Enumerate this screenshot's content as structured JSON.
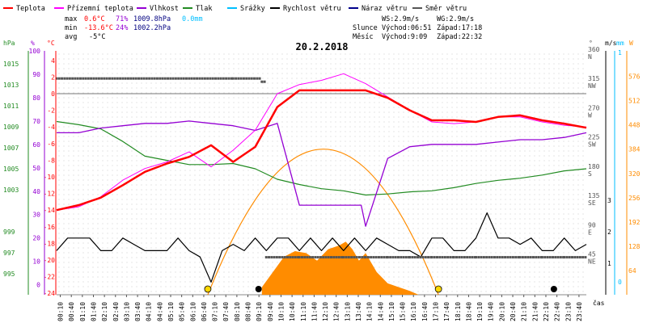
{
  "date": "20.2.2018",
  "legend": [
    {
      "label": "Teplota",
      "color": "#ff0000"
    },
    {
      "label": "Přízemní teplota",
      "color": "#ff00ff"
    },
    {
      "label": "Vlhkost",
      "color": "#9400d3"
    },
    {
      "label": "Tlak",
      "color": "#228b22"
    },
    {
      "label": "Srážky",
      "color": "#00bfff"
    },
    {
      "label": "Rychlost větru",
      "color": "#000000"
    },
    {
      "label": "Náraz větru",
      "color": "#00008b"
    },
    {
      "label": "Směr větru",
      "color": "#555555"
    }
  ],
  "stats": {
    "max": {
      "label": "max",
      "temp": "0.6°C",
      "hum": "71%",
      "press": "1009.8hPa",
      "rain": "0.0mm"
    },
    "min": {
      "label": "min",
      "temp": "-13.6°C",
      "hum": "24%",
      "press": "1002.2hPa"
    },
    "avg": {
      "label": "avg",
      "temp": "-5°C"
    }
  },
  "wind": {
    "ws": "WS:2.9m/s",
    "wg": "WG:2.9m/s"
  },
  "sun": {
    "label": "Slunce",
    "rise": "Východ:06:51",
    "set": "Západ:17:18"
  },
  "moon": {
    "label": "Měsíc",
    "rise": "Východ:9:09",
    "set": "Západ:22:32"
  },
  "axes": {
    "hpa": {
      "unit": "hPa",
      "ticks": [
        "1015",
        "1013",
        "1011",
        "1009",
        "1007",
        "1005",
        "1003",
        "999",
        "997",
        "995"
      ]
    },
    "pct": {
      "unit": "%",
      "ticks": [
        "100",
        "90",
        "80",
        "70",
        "60",
        "50",
        "40",
        "30",
        "20",
        "10",
        "0"
      ]
    },
    "temp": {
      "unit": "°C",
      "ticks": [
        "4",
        "2",
        "0",
        "-2",
        "-4",
        "-6",
        "-8",
        "-10",
        "-12",
        "-14",
        "-16",
        "-18",
        "-20",
        "-22",
        "-24"
      ]
    },
    "dir": {
      "unit": "°",
      "ticks": [
        {
          "deg": "360",
          "name": "N"
        },
        {
          "deg": "315",
          "name": "NW"
        },
        {
          "deg": "270",
          "name": "W"
        },
        {
          "deg": "225",
          "name": "SW"
        },
        {
          "deg": "180",
          "name": "S"
        },
        {
          "deg": "135",
          "name": "SE"
        },
        {
          "deg": "90",
          "name": "E"
        },
        {
          "deg": "45",
          "name": "NE"
        }
      ]
    },
    "ms": {
      "unit": "m/s",
      "ticks": [
        "3",
        "2",
        "1"
      ]
    },
    "mm": {
      "unit": "mm",
      "ticks": [
        "1",
        "0"
      ]
    },
    "wm2": {
      "unit": "W",
      "ticks": [
        "576",
        "512",
        "448",
        "384",
        "320",
        "256",
        "192",
        "128",
        "64"
      ]
    },
    "x": {
      "unit": "čas",
      "ticks": [
        "00:10",
        "00:40",
        "01:10",
        "01:40",
        "02:10",
        "02:40",
        "03:10",
        "03:40",
        "04:10",
        "04:40",
        "05:10",
        "05:40",
        "06:10",
        "06:40",
        "07:10",
        "07:40",
        "08:10",
        "08:40",
        "09:10",
        "09:40",
        "10:10",
        "10:40",
        "11:10",
        "11:40",
        "12:10",
        "12:40",
        "13:10",
        "13:40",
        "14:10",
        "14:40",
        "15:10",
        "15:40",
        "16:10",
        "16:40",
        "17:10",
        "17:40",
        "18:10",
        "18:40",
        "19:10",
        "19:40",
        "20:10",
        "20:40",
        "21:10",
        "21:40",
        "22:10",
        "22:40",
        "23:10",
        "23:40"
      ]
    }
  },
  "chart_data": {
    "type": "line",
    "x_unit": "hour of day",
    "series": [
      {
        "name": "Teplota",
        "unit": "°C",
        "color": "#ff0000",
        "x": [
          0,
          1,
          2,
          3,
          4,
          5,
          6,
          7,
          8,
          9,
          10,
          11,
          12,
          13,
          14,
          15,
          16,
          17,
          18,
          19,
          20,
          21,
          22,
          23,
          24
        ],
        "y": [
          -14,
          -13.4,
          -12.5,
          -11,
          -9.4,
          -8.4,
          -7.6,
          -6.2,
          -8.2,
          -6.4,
          -1.6,
          0.4,
          0.4,
          0.4,
          0.4,
          -0.5,
          -2,
          -3.2,
          -3.2,
          -3.4,
          -2.8,
          -2.6,
          -3.2,
          -3.6,
          -4.1
        ]
      },
      {
        "name": "Přízemní teplota",
        "unit": "°C",
        "color": "#ff00ff",
        "x": [
          0,
          1,
          2,
          3,
          4,
          5,
          6,
          7,
          8,
          9,
          10,
          11,
          12,
          13,
          14,
          15,
          16,
          17,
          18,
          19,
          20,
          21,
          22,
          23,
          24
        ],
        "y": [
          -14,
          -13.6,
          -12.4,
          -10.4,
          -9,
          -8.2,
          -7,
          -8.8,
          -6.8,
          -4.4,
          0,
          1.1,
          1.6,
          2.4,
          1.2,
          -0.4,
          -2,
          -3.4,
          -3.6,
          -3.4,
          -2.8,
          -2.8,
          -3.4,
          -3.8,
          -4
        ]
      },
      {
        "name": "Vlhkost",
        "unit": "%",
        "color": "#9400d3",
        "x": [
          0,
          1,
          2,
          3,
          4,
          5,
          6,
          7,
          8,
          9,
          10,
          11,
          12,
          13,
          13.8,
          14,
          15,
          16,
          17,
          18,
          19,
          20,
          21,
          22,
          23,
          24
        ],
        "y": [
          65,
          65,
          67,
          68,
          69,
          69,
          70,
          69,
          68,
          66,
          69,
          34,
          34,
          34,
          34,
          25,
          54,
          59,
          60,
          60,
          60,
          61,
          62,
          62,
          63,
          65
        ]
      },
      {
        "name": "Tlak",
        "unit": "hPa",
        "color": "#228b22",
        "x": [
          0,
          1,
          2,
          3,
          4,
          5,
          6,
          7,
          8,
          9,
          10,
          11,
          12,
          13,
          14,
          15,
          16,
          17,
          18,
          19,
          20,
          21,
          22,
          23,
          24
        ],
        "y": [
          1009.5,
          1009.2,
          1008.8,
          1007.6,
          1006.2,
          1005.8,
          1005.4,
          1005.4,
          1005.5,
          1005.0,
          1004.0,
          1003.5,
          1003.1,
          1002.9,
          1002.5,
          1002.6,
          1002.8,
          1002.9,
          1003.2,
          1003.6,
          1003.9,
          1004.1,
          1004.4,
          1004.8,
          1005.0
        ]
      },
      {
        "name": "Rychlost větru",
        "unit": "m/s",
        "color": "#000000",
        "x": [
          0,
          0.5,
          1,
          1.5,
          2,
          2.5,
          3,
          3.5,
          4,
          4.5,
          5,
          5.5,
          6,
          6.5,
          7,
          7.5,
          8,
          8.5,
          9,
          9.5,
          10,
          10.5,
          11,
          11.5,
          12,
          12.5,
          13,
          13.5,
          14,
          14.5,
          15,
          15.5,
          16,
          16.5,
          17,
          17.5,
          18,
          18.5,
          19,
          19.5,
          20,
          20.5,
          21,
          21.5,
          22,
          22.5,
          23,
          23.5,
          24
        ],
        "y": [
          1.4,
          1.8,
          1.8,
          1.8,
          1.4,
          1.4,
          1.8,
          1.6,
          1.4,
          1.4,
          1.4,
          1.8,
          1.4,
          1.2,
          0.4,
          1.4,
          1.6,
          1.4,
          1.8,
          1.4,
          1.8,
          1.8,
          1.4,
          1.8,
          1.4,
          1.8,
          1.4,
          1.8,
          1.4,
          1.8,
          1.6,
          1.4,
          1.4,
          1.2,
          1.8,
          1.8,
          1.4,
          1.4,
          1.8,
          2.6,
          1.8,
          1.8,
          1.6,
          1.8,
          1.4,
          1.4,
          1.8,
          1.4,
          1.6
        ]
      },
      {
        "name": "Směr větru",
        "unit": "°",
        "color": "#555555",
        "x": [
          0,
          3,
          6,
          8,
          9.3,
          9.5,
          11,
          13,
          14,
          15,
          16,
          17,
          18,
          19,
          21,
          22,
          23,
          24
        ],
        "y": [
          320,
          320,
          320,
          320,
          315,
          45,
          45,
          45,
          45,
          45,
          45,
          45,
          45,
          45,
          45,
          45,
          45,
          45
        ]
      },
      {
        "name": "Solar",
        "unit": "W/m2",
        "color": "#ff8c00",
        "x": [
          9.3,
          9.8,
          10.3,
          10.8,
          11.3,
          11.8,
          12.3,
          12.8,
          13.1,
          13.4,
          13.7,
          14,
          14.5,
          15,
          15.5,
          16,
          16.4
        ],
        "y": [
          20,
          60,
          100,
          115,
          110,
          90,
          120,
          130,
          140,
          120,
          90,
          110,
          60,
          30,
          20,
          10,
          0
        ]
      }
    ],
    "daylight_curve": {
      "color": "#ff8c00",
      "x": [
        6.85,
        12.1,
        17.3
      ],
      "y": [
        0,
        384,
        0
      ]
    }
  }
}
